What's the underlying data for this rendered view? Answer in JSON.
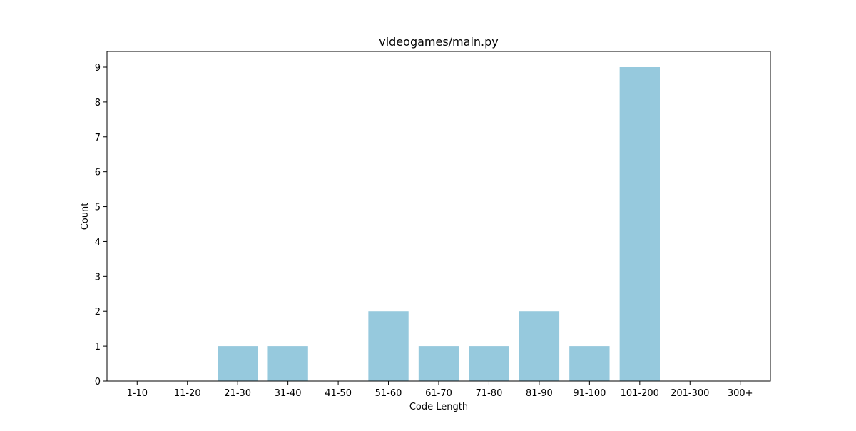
{
  "chart_data": {
    "type": "bar",
    "title": "videogames/main.py",
    "xlabel": "Code Length",
    "ylabel": "Count",
    "categories": [
      "1-10",
      "11-20",
      "21-30",
      "31-40",
      "41-50",
      "51-60",
      "61-70",
      "71-80",
      "81-90",
      "91-100",
      "101-200",
      "201-300",
      "300+"
    ],
    "values": [
      0,
      0,
      1,
      1,
      0,
      2,
      1,
      1,
      2,
      1,
      9,
      0,
      0
    ],
    "ylim": [
      0,
      9.45
    ],
    "yticks": [
      0,
      1,
      2,
      3,
      4,
      5,
      6,
      7,
      8,
      9
    ],
    "grid": false,
    "legend": "none",
    "bar_color": "#96c9dd"
  }
}
